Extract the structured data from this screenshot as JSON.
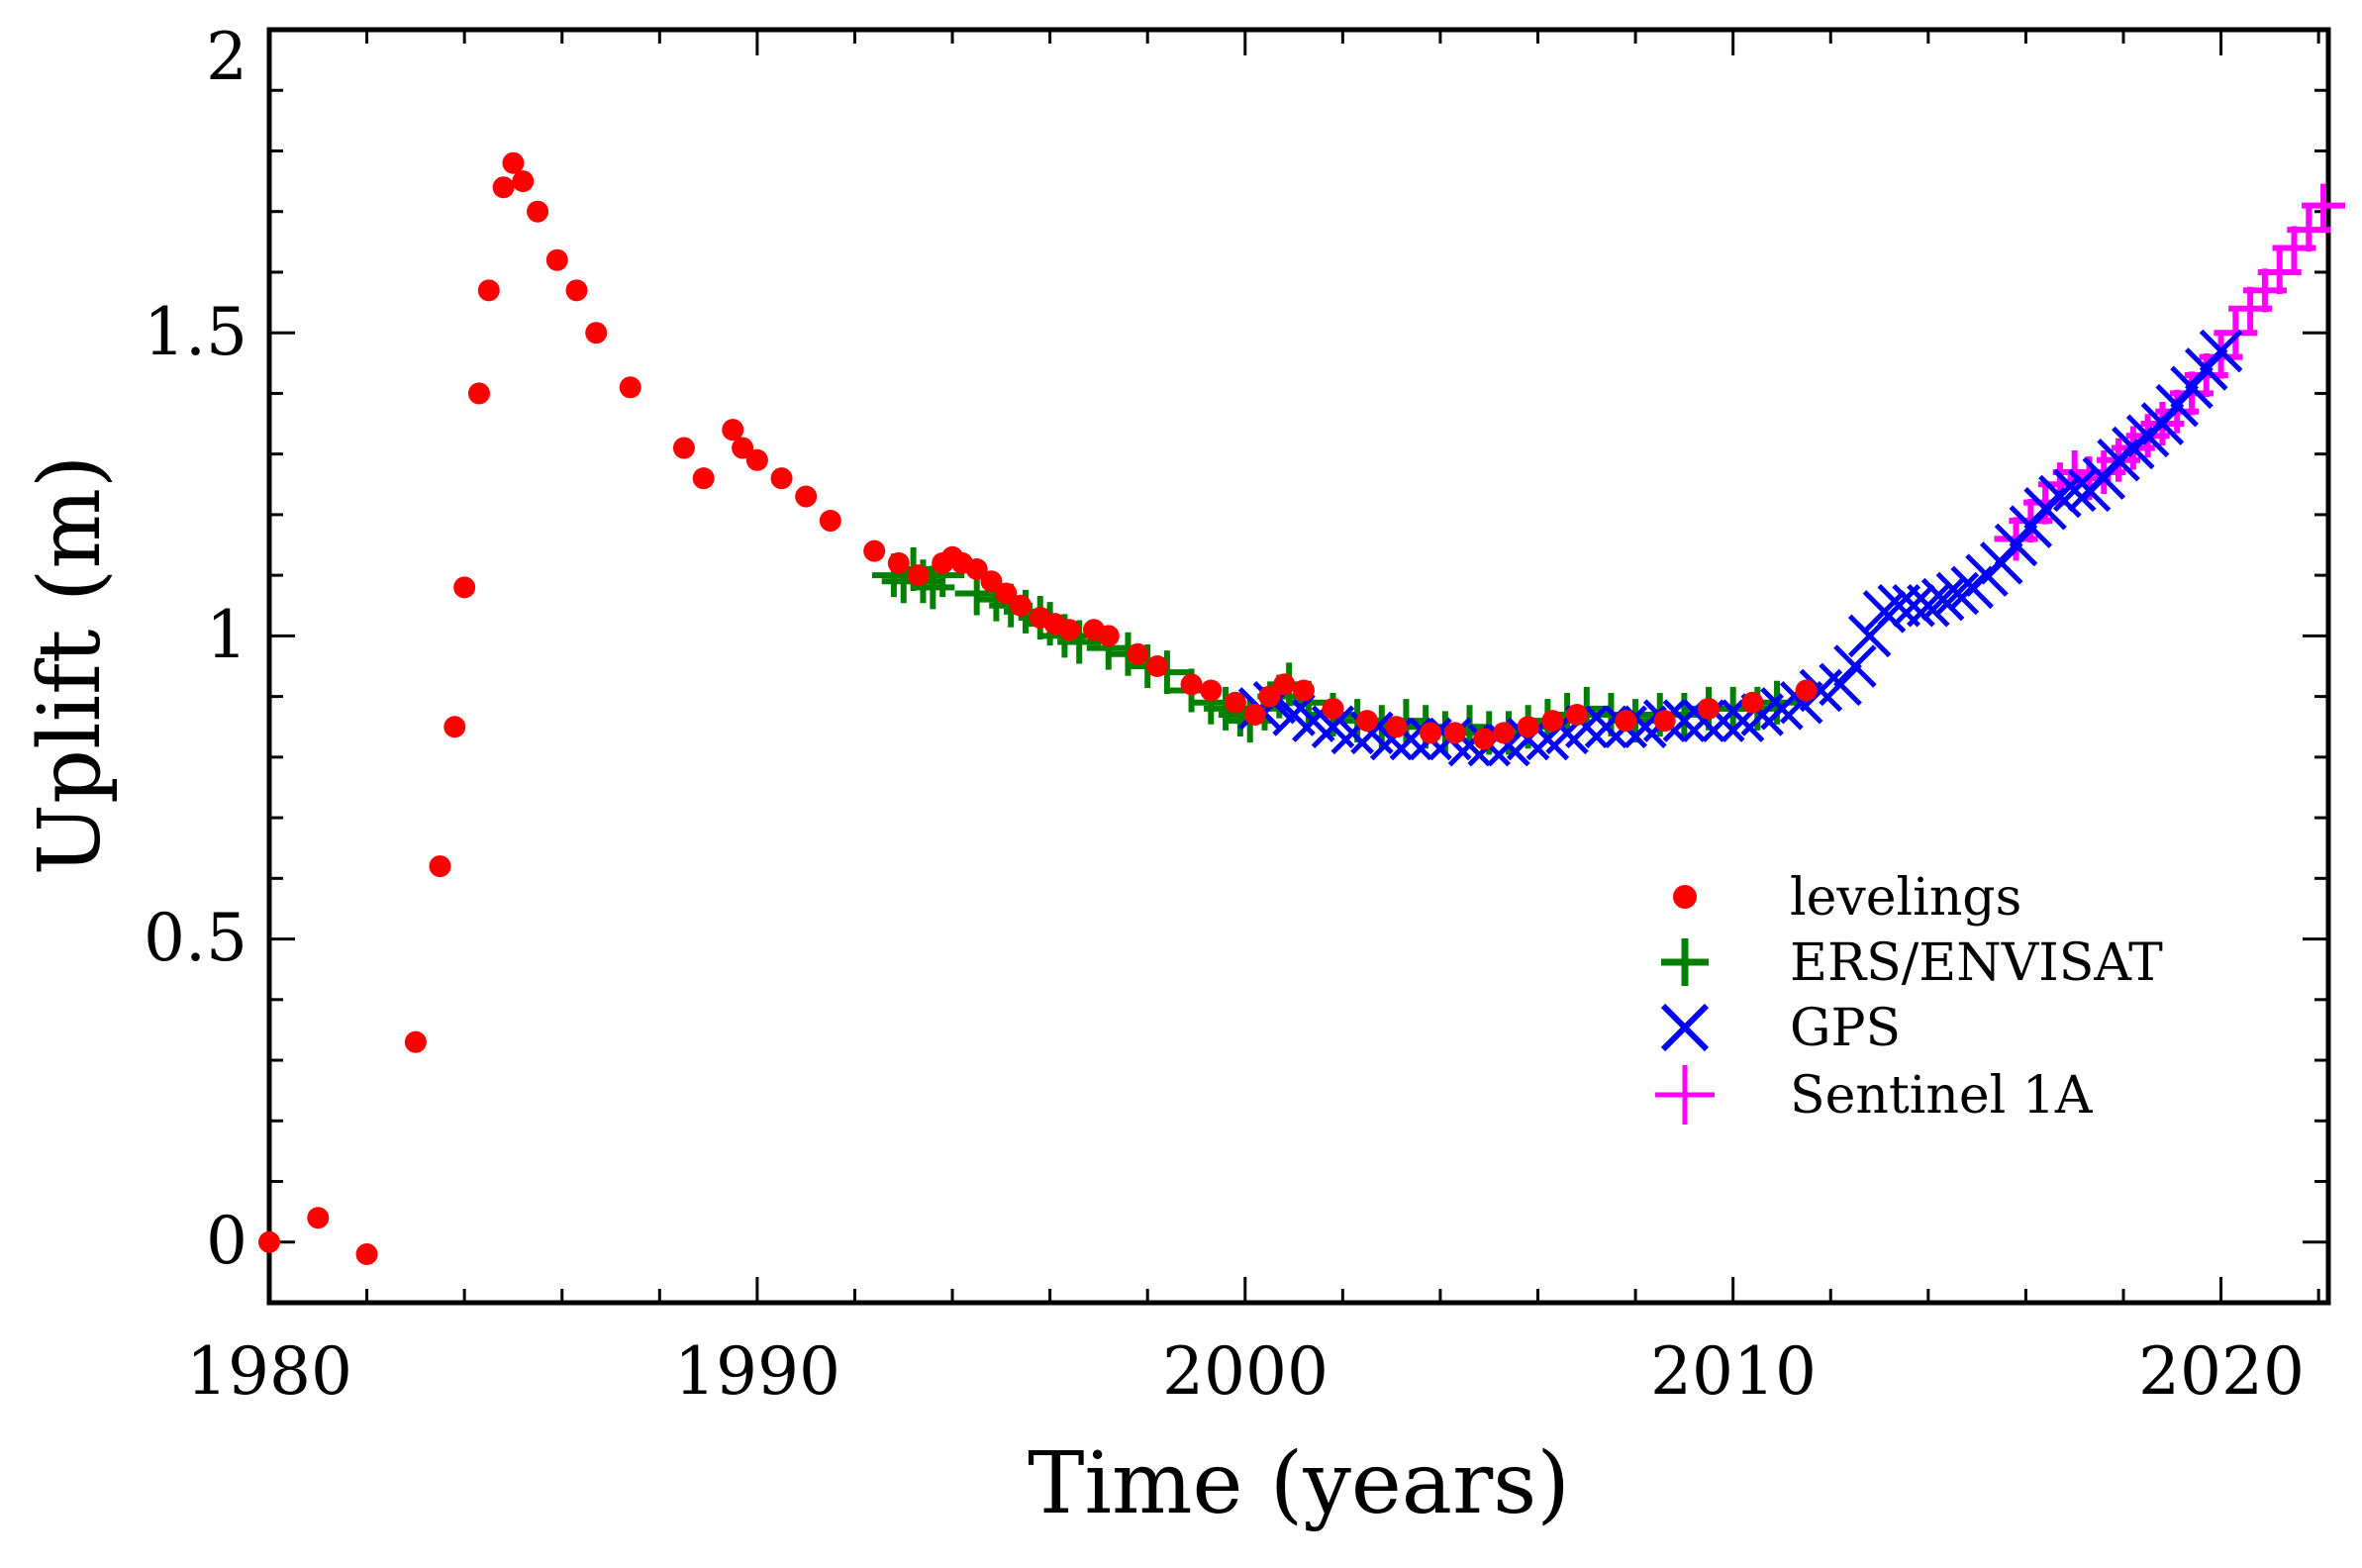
{
  "chart_data": {
    "type": "scatter",
    "title": "",
    "xlabel": "Time (years)",
    "ylabel": "Uplift (m)",
    "xlim": [
      1980,
      2022.2
    ],
    "ylim": [
      -0.1,
      2.0
    ],
    "x_ticks": [
      1980,
      1990,
      2000,
      2010,
      2020
    ],
    "x_tick_labels": [
      "1980",
      "1990",
      "2000",
      "2010",
      "2020"
    ],
    "y_ticks": [
      0,
      0.5,
      1,
      1.5,
      2
    ],
    "y_tick_labels": [
      "0",
      "0.5",
      "1",
      "1.5",
      "2"
    ],
    "legend_position": "lower-right",
    "legend": [
      "levelings",
      "ERS/ENVISAT",
      "GPS",
      "Sentinel 1A"
    ],
    "colors": {
      "levelings": "#ff0000",
      "ers_envisat": "#008000",
      "gps": "#0000ff",
      "sentinel": "#ff00ff",
      "axis": "#000000"
    },
    "series": [
      {
        "name": "levelings",
        "marker": "dot",
        "color": "#ff0000",
        "x": [
          1980.0,
          1981.0,
          1982.0,
          1983.0,
          1983.5,
          1983.8,
          1984.0,
          1984.3,
          1984.5,
          1984.8,
          1985.0,
          1985.2,
          1985.5,
          1985.9,
          1986.3,
          1986.7,
          1987.4,
          1988.5,
          1988.9,
          1989.5,
          1989.7,
          1990.0,
          1990.5,
          1991.0,
          1991.5,
          1992.4,
          1992.9,
          1993.3,
          1993.8,
          1994.0,
          1994.2,
          1994.5,
          1994.8,
          1995.1,
          1995.4,
          1995.8,
          1996.1,
          1996.4,
          1996.9,
          1997.2,
          1997.8,
          1998.2,
          1998.9,
          1999.3,
          1999.8,
          2000.2,
          2000.5,
          2000.8,
          2001.2,
          2001.8,
          2002.5,
          2003.1,
          2003.8,
          2004.3,
          2004.9,
          2005.3,
          2005.8,
          2006.3,
          2006.8,
          2007.8,
          2008.6,
          2009.5,
          2010.4,
          2011.5
        ],
        "y": [
          0.0,
          0.04,
          -0.02,
          0.33,
          0.62,
          0.85,
          1.08,
          1.4,
          1.57,
          1.74,
          1.78,
          1.75,
          1.7,
          1.62,
          1.57,
          1.5,
          1.41,
          1.31,
          1.26,
          1.34,
          1.31,
          1.29,
          1.26,
          1.23,
          1.19,
          1.14,
          1.12,
          1.1,
          1.12,
          1.13,
          1.12,
          1.11,
          1.09,
          1.07,
          1.05,
          1.03,
          1.02,
          1.01,
          1.01,
          1.0,
          0.97,
          0.95,
          0.92,
          0.91,
          0.89,
          0.87,
          0.9,
          0.92,
          0.91,
          0.88,
          0.86,
          0.85,
          0.84,
          0.84,
          0.83,
          0.84,
          0.85,
          0.86,
          0.87,
          0.86,
          0.86,
          0.88,
          0.89,
          0.91
        ]
      },
      {
        "name": "ERS/ENVISAT",
        "marker": "plus",
        "color": "#008000",
        "x": [
          1992.8,
          1993.0,
          1993.2,
          1993.4,
          1993.6,
          1993.8,
          1994.5,
          1994.9,
          1995.2,
          1995.5,
          1995.8,
          1996.0,
          1996.3,
          1996.6,
          1997.2,
          1997.6,
          1998.0,
          1998.4,
          1998.9,
          1999.3,
          1999.6,
          1999.9,
          2000.1,
          2000.4,
          2000.7,
          2000.9,
          2001.3,
          2001.8,
          2002.3,
          2002.8,
          2003.3,
          2003.7,
          2004.1,
          2004.6,
          2005.0,
          2005.4,
          2005.8,
          2006.2,
          2006.6,
          2007.0,
          2007.5,
          2008.0,
          2008.5,
          2009.0,
          2009.5,
          2010.0,
          2010.5,
          2010.9
        ],
        "y": [
          1.1,
          1.09,
          1.11,
          1.09,
          1.08,
          1.1,
          1.07,
          1.06,
          1.05,
          1.04,
          1.03,
          1.02,
          1.0,
          0.99,
          0.98,
          0.97,
          0.95,
          0.94,
          0.91,
          0.89,
          0.88,
          0.87,
          0.86,
          0.88,
          0.9,
          0.92,
          0.89,
          0.87,
          0.86,
          0.85,
          0.86,
          0.85,
          0.84,
          0.85,
          0.84,
          0.84,
          0.85,
          0.86,
          0.87,
          0.88,
          0.87,
          0.86,
          0.87,
          0.87,
          0.88,
          0.88,
          0.88,
          0.89
        ]
      },
      {
        "name": "GPS",
        "marker": "x",
        "color": "#0000ff",
        "x": [
          2000.3,
          2000.6,
          2001.0,
          2001.4,
          2001.8,
          2002.2,
          2002.6,
          2003.0,
          2003.4,
          2003.8,
          2004.2,
          2004.6,
          2005.0,
          2005.4,
          2005.8,
          2006.2,
          2006.6,
          2007.0,
          2007.4,
          2007.8,
          2008.2,
          2008.6,
          2009.0,
          2009.4,
          2009.8,
          2010.2,
          2010.6,
          2011.0,
          2011.4,
          2011.8,
          2012.2,
          2012.5,
          2012.8,
          2013.1,
          2013.4,
          2013.7,
          2014.0,
          2014.3,
          2014.6,
          2014.9,
          2015.2,
          2015.5,
          2015.8,
          2016.1,
          2016.4,
          2016.7,
          2017.0,
          2017.3,
          2017.6,
          2017.9,
          2018.2,
          2018.5,
          2018.8,
          2019.1,
          2019.4,
          2019.7,
          2020.0
        ],
        "y": [
          0.88,
          0.89,
          0.87,
          0.86,
          0.85,
          0.84,
          0.84,
          0.83,
          0.83,
          0.83,
          0.83,
          0.82,
          0.82,
          0.82,
          0.83,
          0.83,
          0.84,
          0.85,
          0.85,
          0.85,
          0.85,
          0.86,
          0.86,
          0.86,
          0.86,
          0.86,
          0.87,
          0.88,
          0.89,
          0.91,
          0.92,
          0.95,
          1.0,
          1.04,
          1.05,
          1.05,
          1.05,
          1.06,
          1.07,
          1.08,
          1.1,
          1.12,
          1.15,
          1.18,
          1.21,
          1.23,
          1.24,
          1.24,
          1.26,
          1.29,
          1.31,
          1.33,
          1.35,
          1.38,
          1.41,
          1.44,
          1.47
        ]
      },
      {
        "name": "Sentinel 1A",
        "marker": "plus",
        "color": "#ff00ff",
        "x": [
          2015.8,
          2016.1,
          2016.4,
          2016.7,
          2017.0,
          2017.3,
          2017.6,
          2017.9,
          2018.2,
          2018.5,
          2018.8,
          2019.1,
          2019.4,
          2019.7,
          2020.0,
          2020.3,
          2020.6,
          2020.9,
          2021.2,
          2021.5,
          2021.8,
          2022.1
        ],
        "y": [
          1.16,
          1.19,
          1.22,
          1.25,
          1.27,
          1.26,
          1.27,
          1.29,
          1.31,
          1.33,
          1.35,
          1.37,
          1.4,
          1.43,
          1.46,
          1.5,
          1.54,
          1.57,
          1.6,
          1.64,
          1.67,
          1.71
        ]
      }
    ]
  }
}
